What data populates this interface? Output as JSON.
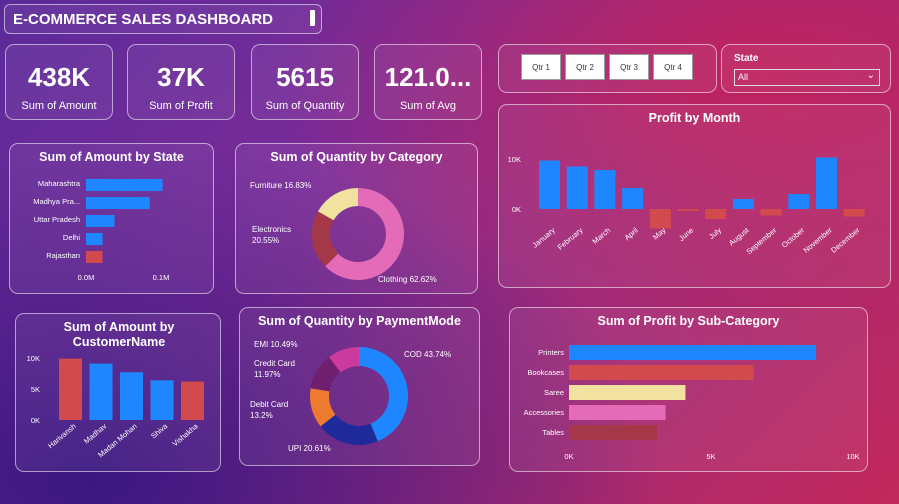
{
  "header": {
    "title": "E-COMMERCE SALES DASHBOARD"
  },
  "kpis": [
    {
      "value": "438K",
      "label": "Sum of Amount"
    },
    {
      "value": "37K",
      "label": "Sum of Profit"
    },
    {
      "value": "5615",
      "label": "Sum of Quantity"
    },
    {
      "value": "121.0...",
      "label": "Sum of Avg"
    }
  ],
  "quarters": [
    "Qtr 1",
    "Qtr 2",
    "Qtr 3",
    "Qtr 4"
  ],
  "state_filter": {
    "label": "State",
    "value": "All"
  },
  "colors": {
    "blue": "#1e87ff",
    "red": "#d24a4e",
    "yellow": "#f2e2a0",
    "pink": "#e46bb7",
    "darkred": "#a53848",
    "navy": "#1f2a9a",
    "orange": "#ee7a30",
    "purple": "#6f1f6e",
    "magenta": "#cc3a9e"
  },
  "chart_data": [
    {
      "id": "amount_by_state",
      "type": "bar",
      "orientation": "horizontal",
      "title": "Sum of Amount by State",
      "categories": [
        "Maharashtra",
        "Madhya Pra...",
        "Uttar Pradesh",
        "Delhi",
        "Rajasthan"
      ],
      "values": [
        0.102,
        0.085,
        0.038,
        0.022,
        0.022
      ],
      "xlim": [
        0,
        0.12
      ],
      "ticks": [
        0,
        0.1
      ],
      "tick_labels": [
        "0.0M",
        "0.1M"
      ],
      "colors": [
        "#1e87ff",
        "#1e87ff",
        "#1e87ff",
        "#1e87ff",
        "#d24a4e"
      ]
    },
    {
      "id": "quantity_by_category",
      "type": "pie",
      "title": "Sum of Quantity by Category",
      "categories": [
        "Clothing",
        "Electronics",
        "Furniture"
      ],
      "values": [
        62.62,
        20.55,
        16.83
      ],
      "labels": [
        "Clothing 62.62%",
        "Electronics 20.55%",
        "Furniture 16.83%"
      ],
      "colors": [
        "#e46bb7",
        "#a53848",
        "#f2e2a0"
      ]
    },
    {
      "id": "quantity_by_payment",
      "type": "pie",
      "title": "Sum of Quantity by PaymentMode",
      "categories": [
        "COD",
        "UPI",
        "Debit Card",
        "Credit Card",
        "EMI"
      ],
      "values": [
        43.74,
        20.61,
        13.2,
        11.97,
        10.49
      ],
      "labels": [
        "COD 43.74%",
        "UPI 20.61%",
        "Debit Card 13.2%",
        "Credit Card 11.97%",
        "EMI 10.49%"
      ],
      "colors": [
        "#1e87ff",
        "#1f2a9a",
        "#ee7a30",
        "#6f1f6e",
        "#cc3a9e"
      ]
    },
    {
      "id": "profit_by_month",
      "type": "bar",
      "title": "Profit by Month",
      "categories": [
        "January",
        "February",
        "March",
        "April",
        "May",
        "June",
        "July",
        "August",
        "September",
        "October",
        "November",
        "December"
      ],
      "values": [
        9700,
        8500,
        7800,
        4200,
        -3900,
        -400,
        -2000,
        2000,
        -1300,
        3000,
        10300,
        -1500
      ],
      "ticks": [
        0,
        10000
      ],
      "tick_labels": [
        "0K",
        "10K"
      ]
    },
    {
      "id": "amount_by_customer",
      "type": "bar",
      "title": "Sum of Amount by CustomerName",
      "categories": [
        "Harivansh",
        "Madhav",
        "Madan Mohan",
        "Shiva",
        "Vishakha"
      ],
      "values": [
        9900,
        9100,
        7700,
        6400,
        6200
      ],
      "ticks": [
        0,
        5000,
        10000
      ],
      "tick_labels": [
        "0K",
        "5K",
        "10K"
      ],
      "colors": [
        "#d24a4e",
        "#1e87ff",
        "#1e87ff",
        "#1e87ff",
        "#d24a4e"
      ]
    },
    {
      "id": "profit_by_subcategory",
      "type": "bar",
      "orientation": "horizontal",
      "title": "Sum of Profit by Sub-Category",
      "categories": [
        "Printers",
        "Bookcases",
        "Saree",
        "Accessories",
        "Tables"
      ],
      "values": [
        8700,
        6500,
        4100,
        3400,
        3100
      ],
      "ticks": [
        0,
        5000,
        10000
      ],
      "tick_labels": [
        "0K",
        "5K",
        "10K"
      ],
      "colors": [
        "#1e87ff",
        "#d24a4e",
        "#f2e2a0",
        "#e46bb7",
        "#a53848"
      ]
    }
  ]
}
